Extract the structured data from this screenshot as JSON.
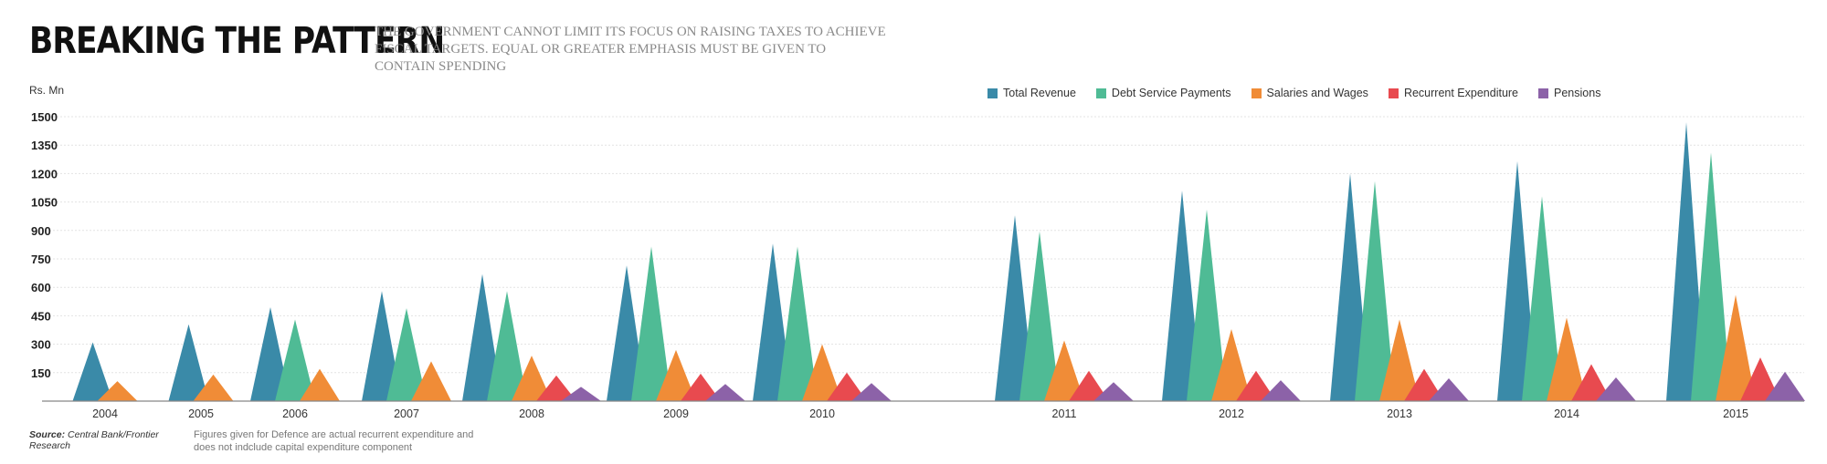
{
  "header": {
    "title": "BREAKING THE PATTERN",
    "subtitle": "THE GOVERNMENT CANNOT LIMIT ITS FOCUS ON RAISING TAXES TO ACHIEVE FISCAL TARGETS. EQUAL OR GREATER EMPHASIS MUST BE GIVEN TO CONTAIN SPENDING"
  },
  "footer": {
    "source_label": "Source:",
    "source_text": "Central Bank/Frontier Research",
    "footnote": "Figures given for Defence are actual recurrent expenditure and does not indclude capital expenditure component"
  },
  "chart_data": {
    "type": "area",
    "ylabel": "Rs. Mn",
    "ylim": [
      0,
      1500
    ],
    "yticks": [
      150,
      300,
      450,
      600,
      750,
      900,
      1050,
      1200,
      1350,
      1500
    ],
    "grid": true,
    "legend_position": "top-right",
    "categories": [
      "2004",
      "2005",
      "2006",
      "2007",
      "2008",
      "2009",
      "2010",
      "2011",
      "2012",
      "2013",
      "2014",
      "2015"
    ],
    "series": [
      {
        "name": "Total Revenue",
        "color": "#3a8aa8",
        "values": [
          310,
          405,
          495,
          580,
          670,
          715,
          830,
          980,
          1110,
          1200,
          1265,
          1470
        ]
      },
      {
        "name": "Debt Service Payments",
        "color": "#4fbb95",
        "values": [
          0,
          0,
          430,
          490,
          580,
          815,
          815,
          895,
          1010,
          1160,
          1080,
          1310
        ]
      },
      {
        "name": "Salaries and Wages",
        "color": "#f08c37",
        "values": [
          105,
          140,
          170,
          210,
          240,
          270,
          300,
          320,
          380,
          430,
          440,
          560
        ]
      },
      {
        "name": "Recurrent Expenditure",
        "color": "#e84a4f",
        "values": [
          0,
          0,
          0,
          0,
          135,
          145,
          150,
          160,
          160,
          170,
          195,
          230
        ]
      },
      {
        "name": "Pensions",
        "color": "#8c62a8",
        "values": [
          0,
          0,
          0,
          0,
          75,
          90,
          95,
          100,
          110,
          120,
          125,
          155
        ]
      }
    ]
  }
}
